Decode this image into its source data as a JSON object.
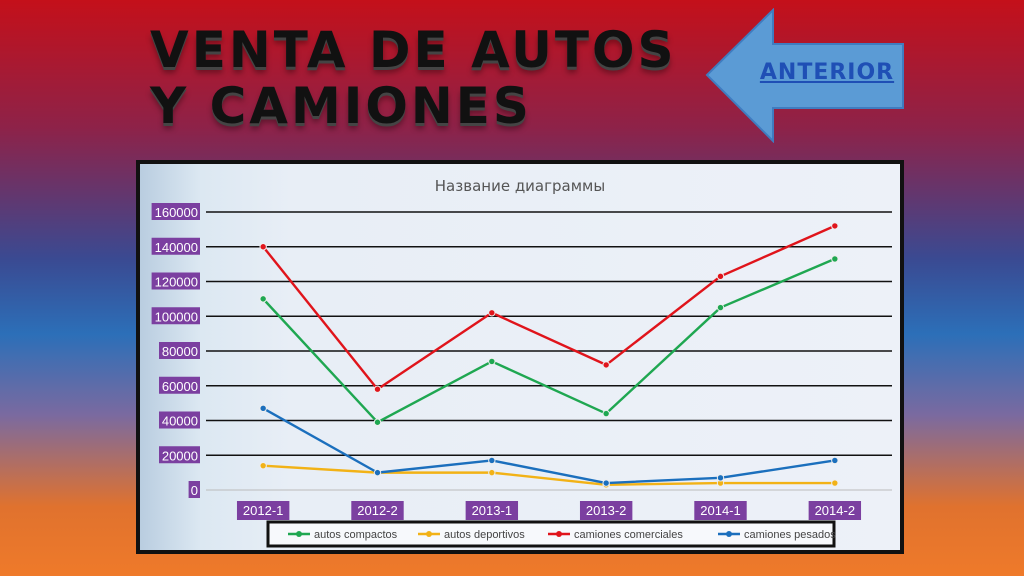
{
  "slide": {
    "title": "VENTA DE AUTOS Y CAMIONES",
    "nav_label": "ANTERIOR"
  },
  "colors": {
    "autos_compactos": "#1fa751",
    "autos_deportivos": "#f2b216",
    "camiones_comerciales": "#e0141b",
    "camiones_pesados": "#1b6fbd",
    "tick_bg": "#7b3fa0",
    "arrow_fill": "#5b9bd5"
  },
  "chart_data": {
    "type": "line",
    "title": "Название диаграммы",
    "categories": [
      "2012-1",
      "2012-2",
      "2013-1",
      "2013-2",
      "2014-1",
      "2014-2"
    ],
    "ylim": [
      0,
      160000
    ],
    "yticks": [
      0,
      20000,
      40000,
      60000,
      80000,
      100000,
      120000,
      140000,
      160000
    ],
    "grid": true,
    "legend_position": "bottom",
    "series": [
      {
        "name": "autos compactos",
        "color": "#1fa751",
        "values": [
          110000,
          39000,
          74000,
          44000,
          105000,
          133000
        ]
      },
      {
        "name": "autos deportivos",
        "color": "#f2b216",
        "values": [
          14000,
          10000,
          10000,
          3000,
          4000,
          4000
        ]
      },
      {
        "name": "camiones comerciales",
        "color": "#e0141b",
        "values": [
          140000,
          58000,
          102000,
          72000,
          123000,
          152000
        ]
      },
      {
        "name": "camiones pesados",
        "color": "#1b6fbd",
        "values": [
          47000,
          10000,
          17000,
          4000,
          7000,
          17000
        ]
      }
    ]
  }
}
